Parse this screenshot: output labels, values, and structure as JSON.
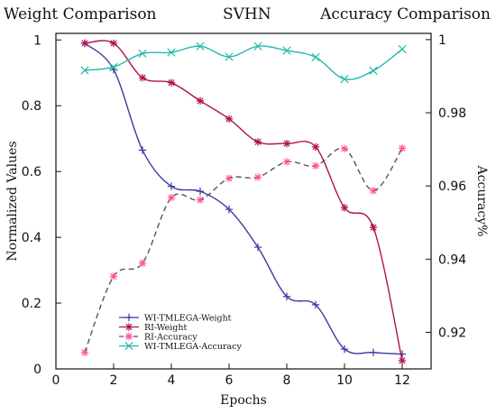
{
  "header": {
    "left": "Weight Comparison",
    "center": "SVHN",
    "right": "Accuracy Comparison"
  },
  "chart_data": {
    "type": "line",
    "xlabel": "Epochs",
    "ylabel_left": "Normalized Values",
    "ylabel_right": "Accuracy%",
    "xlim": [
      0,
      13
    ],
    "ylim_left": [
      0,
      1.02
    ],
    "ylim_right": [
      0.91,
      1.0017
    ],
    "x_ticks": [
      0,
      2,
      4,
      6,
      8,
      10,
      12
    ],
    "y_ticks_left": [
      0,
      0.2,
      0.4,
      0.6,
      0.8,
      1
    ],
    "y_ticks_right": [
      0.92,
      0.94,
      0.96,
      0.98,
      1
    ],
    "grid": false,
    "legend_position": "bottom-left",
    "series": [
      {
        "name": "WI-TMLEGA-Weight",
        "axis": "left",
        "color": "#3a3aa0",
        "style": "solid",
        "marker": "plus",
        "x": [
          1,
          2,
          3,
          4,
          5,
          6,
          7,
          8,
          9,
          10,
          11,
          12
        ],
        "y": [
          0.99,
          0.91,
          0.665,
          0.555,
          0.54,
          0.485,
          0.37,
          0.22,
          0.195,
          0.06,
          0.05,
          0.045
        ]
      },
      {
        "name": "RI-Weight",
        "axis": "left",
        "color": "#b01050",
        "style": "solid",
        "marker": "asterisk",
        "x": [
          1,
          2,
          3,
          4,
          5,
          6,
          7,
          8,
          9,
          10,
          11,
          12
        ],
        "y": [
          0.99,
          0.99,
          0.885,
          0.87,
          0.815,
          0.76,
          0.69,
          0.685,
          0.675,
          0.49,
          0.43,
          0.025
        ]
      },
      {
        "name": "RI-Accuracy",
        "axis": "right",
        "color": "#555555",
        "marker_color": "#ff4fa0",
        "style": "dashed",
        "marker": "asterisk",
        "x": [
          1,
          2,
          3,
          4,
          5,
          6,
          7,
          8,
          9,
          10,
          11,
          12
        ],
        "y": [
          0.9145,
          0.9353,
          0.9389,
          0.9568,
          0.9562,
          0.9621,
          0.9624,
          0.9666,
          0.9655,
          0.9702,
          0.9587,
          0.9703
        ]
      },
      {
        "name": "WI-TMLEGA-Accuracy",
        "axis": "right",
        "color": "#22b8a8",
        "style": "solid",
        "marker": "x",
        "x": [
          1,
          2,
          3,
          4,
          5,
          6,
          7,
          8,
          9,
          10,
          11,
          12
        ],
        "y": [
          0.9916,
          0.9925,
          0.9962,
          0.9965,
          0.9982,
          0.9953,
          0.9982,
          0.997,
          0.9952,
          0.9892,
          0.9915,
          0.9974
        ]
      }
    ]
  }
}
